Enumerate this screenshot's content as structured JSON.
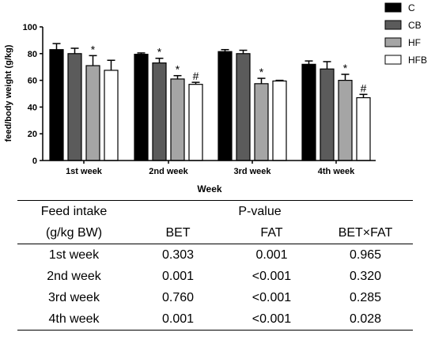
{
  "chart_data": {
    "type": "bar",
    "ylabel": "feed/body weight (g/kg)",
    "xlabel": "Week",
    "ylim": [
      0,
      100
    ],
    "yticks": [
      "0",
      "20",
      "40",
      "60",
      "80",
      "100"
    ],
    "categories": [
      "1st week",
      "2nd week",
      "3rd week",
      "4th week"
    ],
    "series": [
      {
        "name": "C",
        "color": "#000000",
        "values": [
          83,
          79.5,
          81.5,
          72
        ],
        "errors": [
          4.5,
          1,
          1.5,
          2.5
        ],
        "sig": [
          "",
          "",
          "",
          ""
        ]
      },
      {
        "name": "CB",
        "color": "#5b5b5b",
        "values": [
          80,
          73,
          80,
          68.5
        ],
        "errors": [
          4,
          3.5,
          2.5,
          5.5
        ],
        "sig": [
          "",
          "*",
          "",
          ""
        ]
      },
      {
        "name": "HF",
        "color": "#a5a5a5",
        "values": [
          71,
          61,
          57.5,
          60
        ],
        "errors": [
          7.5,
          2.5,
          4,
          4.5
        ],
        "sig": [
          "*",
          "*",
          "*",
          "*"
        ]
      },
      {
        "name": "HFB",
        "color": "#ffffff",
        "values": [
          67.5,
          57,
          59.5,
          47
        ],
        "errors": [
          7.5,
          1.5,
          0.5,
          2.5
        ],
        "sig": [
          "",
          "#",
          "",
          "#"
        ]
      }
    ]
  },
  "table": {
    "header_top": {
      "col0": "Feed intake",
      "pvalue": "P-value"
    },
    "header_sub": {
      "col0": "(g/kg BW)",
      "col1": "BET",
      "col2": "FAT",
      "col3": "BET×FAT"
    },
    "rows": [
      {
        "week": "1st week",
        "bet": "0.303",
        "fat": "0.001",
        "betfat": "0.965"
      },
      {
        "week": "2nd week",
        "bet": "0.001",
        "fat": "<0.001",
        "betfat": "0.320"
      },
      {
        "week": "3rd week",
        "bet": "0.760",
        "fat": "<0.001",
        "betfat": "0.285"
      },
      {
        "week": "4th week",
        "bet": "0.001",
        "fat": "<0.001",
        "betfat": "0.028"
      }
    ]
  }
}
